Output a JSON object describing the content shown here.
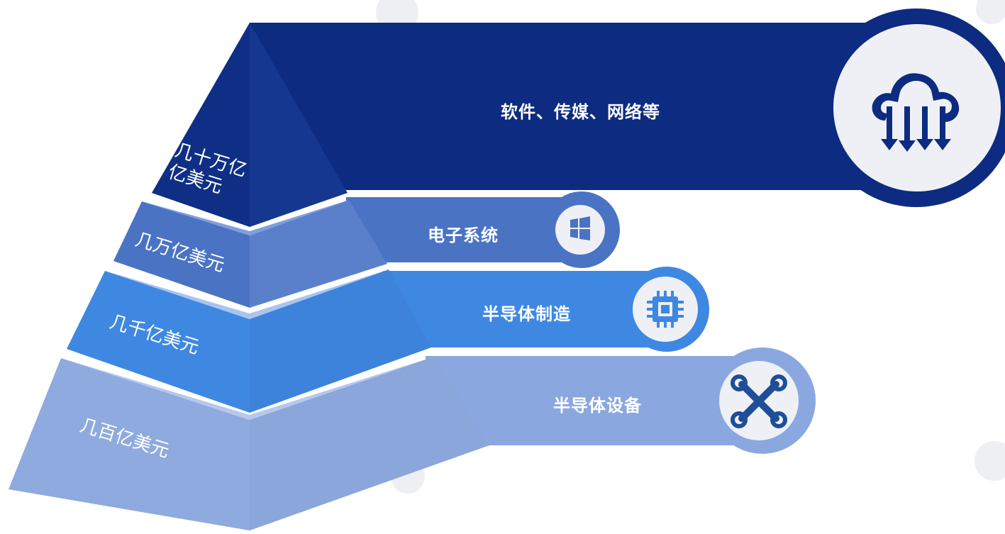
{
  "colors": {
    "tier1": "#0f2f86",
    "tier2": "#4a73c4",
    "tier3": "#3f88e2",
    "tier4": "#8eaadf",
    "watermark": "#e7e9ee"
  },
  "tiers": [
    {
      "value_label_line1": "几十万亿",
      "value_label_line2": "亿美元",
      "industry": "软件、传媒、网络等",
      "icon": "cloud-download-icon"
    },
    {
      "value_label": "几万亿美元",
      "industry": "电子系统",
      "icon": "windows-logo-icon"
    },
    {
      "value_label": "几千亿美元",
      "industry": "半导体制造",
      "icon": "chip-icon"
    },
    {
      "value_label": "几百亿美元",
      "industry": "半导体设备",
      "icon": "wrench-cross-icon"
    }
  ]
}
